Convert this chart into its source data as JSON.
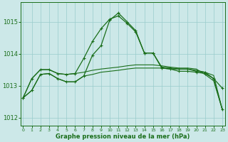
{
  "bg_color": "#cce8e8",
  "grid_color": "#99cccc",
  "line_color": "#1a6e1a",
  "ylim": [
    1011.75,
    1015.6
  ],
  "yticks": [
    1012,
    1013,
    1014,
    1015
  ],
  "xlim": [
    -0.3,
    23.3
  ],
  "xticks": [
    0,
    1,
    2,
    3,
    4,
    5,
    6,
    7,
    8,
    9,
    10,
    11,
    12,
    13,
    14,
    15,
    16,
    17,
    18,
    19,
    20,
    21,
    22,
    23
  ],
  "xlabel": "Graphe pression niveau de la mer (hPa)",
  "series": [
    {
      "y": [
        1012.62,
        1012.85,
        1013.35,
        1013.38,
        1013.22,
        1013.12,
        1013.12,
        1013.3,
        1013.95,
        1014.25,
        1015.05,
        1015.27,
        1015.0,
        1014.72,
        1014.02,
        1014.02,
        1013.55,
        1013.52,
        1013.45,
        1013.45,
        1013.42,
        1013.38,
        1013.22,
        1012.92
      ],
      "marker": true,
      "linewidth": 0.9
    },
    {
      "y": [
        1012.62,
        1013.22,
        1013.5,
        1013.5,
        1013.38,
        1013.35,
        1013.38,
        1013.85,
        1014.38,
        1014.78,
        1015.08,
        1015.18,
        1014.95,
        1014.68,
        1014.02,
        1014.02,
        1013.58,
        1013.55,
        1013.52,
        1013.52,
        1013.45,
        1013.42,
        1013.22,
        1012.25
      ],
      "marker": true,
      "linewidth": 0.9
    },
    {
      "y": [
        1012.62,
        1012.85,
        1013.35,
        1013.38,
        1013.22,
        1013.12,
        1013.12,
        1013.3,
        1013.35,
        1013.42,
        1013.45,
        1013.48,
        1013.52,
        1013.55,
        1013.55,
        1013.55,
        1013.55,
        1013.52,
        1013.52,
        1013.52,
        1013.48,
        1013.42,
        1013.32,
        1012.25
      ],
      "marker": false,
      "linewidth": 0.8
    },
    {
      "y": [
        1012.62,
        1013.22,
        1013.5,
        1013.5,
        1013.38,
        1013.35,
        1013.38,
        1013.42,
        1013.48,
        1013.52,
        1013.55,
        1013.58,
        1013.62,
        1013.65,
        1013.65,
        1013.65,
        1013.62,
        1013.58,
        1013.55,
        1013.55,
        1013.52,
        1013.35,
        1013.15,
        1012.25
      ],
      "marker": false,
      "linewidth": 0.8
    }
  ]
}
